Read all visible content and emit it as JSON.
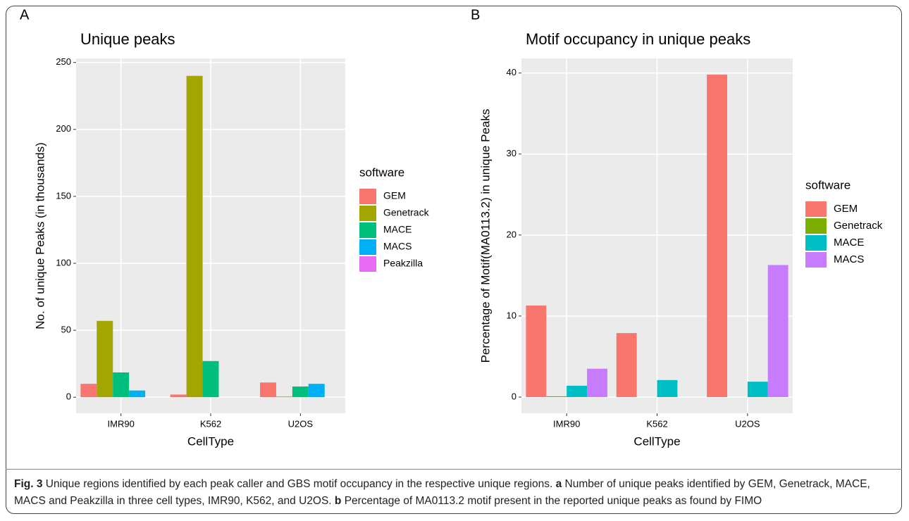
{
  "chart_data": [
    {
      "type": "bar",
      "panel": "A",
      "title": "Unique peaks",
      "x_label": "CellType",
      "y_label": "No. of unique Peaks (in thousands)",
      "legend_title": "software",
      "categories": [
        "IMR90",
        "K562",
        "U2OS"
      ],
      "series": [
        {
          "name": "GEM",
          "color": "#f8766d",
          "values": [
            10,
            2,
            11
          ]
        },
        {
          "name": "Genetrack",
          "color": "#a3a500",
          "values": [
            57,
            240,
            0.5
          ]
        },
        {
          "name": "MACE",
          "color": "#00bf7d",
          "values": [
            18.5,
            27,
            8
          ]
        },
        {
          "name": "MACS",
          "color": "#00b0f6",
          "values": [
            5,
            null,
            10
          ]
        },
        {
          "name": "Peakzilla",
          "color": "#e76bf3",
          "values": [
            null,
            null,
            null
          ]
        }
      ],
      "ylim": [
        -12,
        253
      ],
      "yticks": [
        0,
        50,
        100,
        150,
        200,
        250
      ],
      "grid": true
    },
    {
      "type": "bar",
      "panel": "B",
      "title": "Motif occupancy in unique peaks",
      "x_label": "CellType",
      "y_label": "Percentage of Motif(MA0113.2) in unique Peaks",
      "legend_title": "software",
      "categories": [
        "IMR90",
        "K562",
        "U2OS"
      ],
      "series": [
        {
          "name": "GEM",
          "color": "#f8766d",
          "values": [
            11.3,
            7.9,
            39.8
          ]
        },
        {
          "name": "Genetrack",
          "color": "#7cae00",
          "values": [
            0.1,
            null,
            null
          ]
        },
        {
          "name": "MACE",
          "color": "#00bfc4",
          "values": [
            1.4,
            2.1,
            1.9
          ]
        },
        {
          "name": "MACS",
          "color": "#c77cff",
          "values": [
            3.5,
            null,
            16.3
          ]
        }
      ],
      "ylim": [
        -2,
        41.8
      ],
      "yticks": [
        0,
        10,
        20,
        30,
        40
      ],
      "grid": true
    }
  ],
  "caption": {
    "label": "Fig. 3",
    "text": "Unique regions identified by each peak caller and GBS motif occupancy in the respective unique regions.",
    "a": "a",
    "a_text": "Number of unique peaks identified by GEM, Genetrack, MACE, MACS and Peakzilla in three cell types, IMR90, K562, and U2OS.",
    "b": "b",
    "b_text": "Percentage of MA0113.2 motif present in the reported unique peaks as found by FIMO"
  }
}
